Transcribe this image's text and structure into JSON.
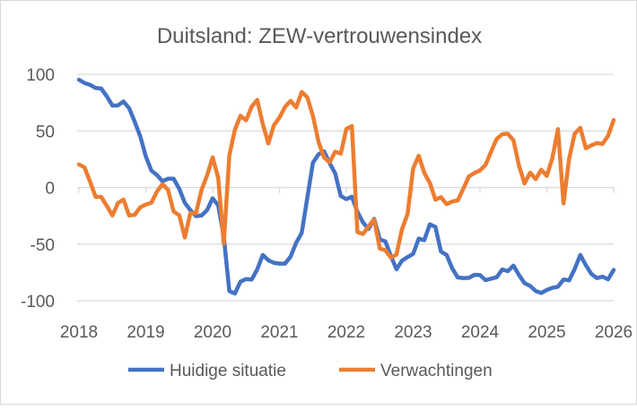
{
  "chart_data": {
    "type": "line",
    "title": "Duitsland: ZEW-vertrouwensindex",
    "xlabel": "",
    "ylabel": "",
    "x_start": "2018-01",
    "x_step": "month",
    "xlim": [
      2018,
      2026
    ],
    "ylim": [
      -100,
      100
    ],
    "x_ticks": [
      "2018",
      "2019",
      "2020",
      "2021",
      "2022",
      "2023",
      "2024",
      "2025",
      "2026"
    ],
    "y_ticks": [
      "100",
      "50",
      "0",
      "-50",
      "-100"
    ],
    "y_tick_values": [
      100,
      50,
      0,
      -50,
      -100
    ],
    "grid": true,
    "legend_position": "bottom",
    "series": [
      {
        "name": "Huidige situatie",
        "color": "#4472C4",
        "values": [
          95.2,
          92.3,
          90.7,
          87.9,
          87.4,
          80.6,
          72.4,
          72.6,
          76.0,
          70.1,
          58.2,
          45.3,
          27.6,
          15.0,
          11.1,
          5.5,
          7.8,
          7.8,
          -1.1,
          -13.5,
          -19.9,
          -25.3,
          -24.7,
          -19.9,
          -9.5,
          -15.7,
          -43.1,
          -91.5,
          -93.5,
          -83.1,
          -80.9,
          -81.3,
          -72.3,
          -59.5,
          -64.3,
          -66.5,
          -67.2,
          -67.2,
          -61.0,
          -48.8,
          -40.1,
          -9.1,
          21.9,
          29.3,
          31.9,
          21.6,
          12.5,
          -7.4,
          -10.2,
          -8.1,
          -21.4,
          -30.8,
          -36.5,
          -27.6,
          -45.8,
          -47.6,
          -60.5,
          -72.2,
          -64.5,
          -61.4,
          -58.6,
          -45.1,
          -46.5,
          -32.5,
          -34.8,
          -56.5,
          -59.5,
          -71.3,
          -79.4,
          -79.9,
          -79.8,
          -77.1,
          -77.3,
          -81.7,
          -80.5,
          -79.2,
          -72.3,
          -73.8,
          -68.9,
          -77.3,
          -84.5,
          -86.9,
          -91.4,
          -93.1,
          -90.4,
          -88.5,
          -87.6,
          -81.2,
          -82.0,
          -72.0,
          -59.5,
          -68.6,
          -76.4,
          -80.0,
          -78.7,
          -81.0,
          -72.7
        ]
      },
      {
        "name": "Verwachtingen",
        "color": "#ED7D31",
        "values": [
          20.4,
          17.8,
          5.1,
          -8.2,
          -8.2,
          -16.1,
          -24.7,
          -13.7,
          -10.6,
          -24.7,
          -24.1,
          -17.5,
          -15.0,
          -13.4,
          -3.6,
          3.1,
          -2.1,
          -21.1,
          -24.5,
          -44.1,
          -22.5,
          -22.8,
          -2.1,
          10.7,
          26.7,
          8.7,
          -49.5,
          28.2,
          51.0,
          63.4,
          59.3,
          71.5,
          77.4,
          56.1,
          39.0,
          55.0,
          61.8,
          71.2,
          76.6,
          70.7,
          84.4,
          79.8,
          63.3,
          40.4,
          26.5,
          22.3,
          31.7,
          29.9,
          51.7,
          54.3,
          -39.3,
          -41.0,
          -34.3,
          -28.0,
          -53.8,
          -55.3,
          -61.9,
          -59.2,
          -36.7,
          -23.3,
          16.9,
          28.1,
          13.0,
          4.1,
          -10.7,
          -8.5,
          -14.7,
          -12.3,
          -11.4,
          -1.1,
          9.8,
          12.8,
          15.2,
          19.9,
          31.7,
          42.9,
          47.1,
          47.5,
          41.8,
          19.2,
          3.6,
          13.1,
          7.4,
          15.7,
          10.3,
          26.0,
          51.6,
          -14.0,
          25.2,
          47.5,
          52.7,
          34.7,
          37.3,
          39.3,
          38.5,
          45.8,
          59.6
        ]
      }
    ]
  }
}
